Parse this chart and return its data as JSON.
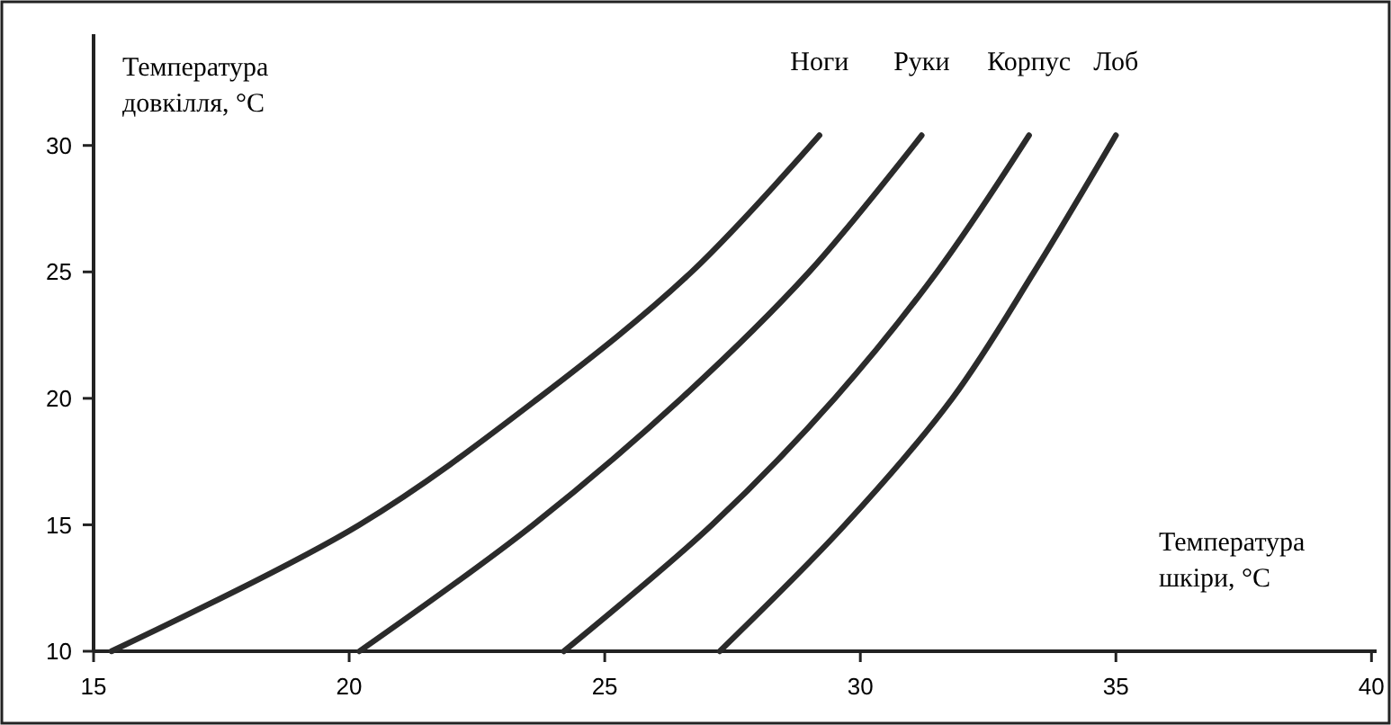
{
  "chart_data": {
    "type": "line",
    "xlabel": "Температура шкіри, °C",
    "ylabel": "Температура довкілля, °C",
    "xlim": [
      15,
      40.1
    ],
    "ylim": [
      10,
      34.4
    ],
    "xticks": [
      15,
      20,
      25,
      30,
      35,
      40
    ],
    "yticks": [
      10,
      15,
      20,
      25,
      30
    ],
    "marker": "none",
    "line_style": "solid",
    "series": [
      {
        "name": "Ноги",
        "color": "#2b2b2b",
        "x": [
          15.35,
          20.2,
          23.7,
          26.7,
          29.2
        ],
        "values": [
          10,
          15,
          20,
          25,
          30.4
        ]
      },
      {
        "name": "Руки",
        "color": "#2b2b2b",
        "x": [
          20.2,
          23.6,
          26.5,
          29.0,
          31.2
        ],
        "values": [
          10,
          15,
          20,
          25,
          30.4
        ]
      },
      {
        "name": "Корпус",
        "color": "#2b2b2b",
        "x": [
          24.2,
          27.1,
          29.5,
          31.5,
          33.3
        ],
        "values": [
          10,
          15,
          20,
          25,
          30.4
        ]
      },
      {
        "name": "Лоб",
        "color": "#2b2b2b",
        "x": [
          27.25,
          29.7,
          31.8,
          33.4,
          35.0
        ],
        "values": [
          10,
          15,
          20,
          25,
          30.4
        ]
      }
    ]
  }
}
